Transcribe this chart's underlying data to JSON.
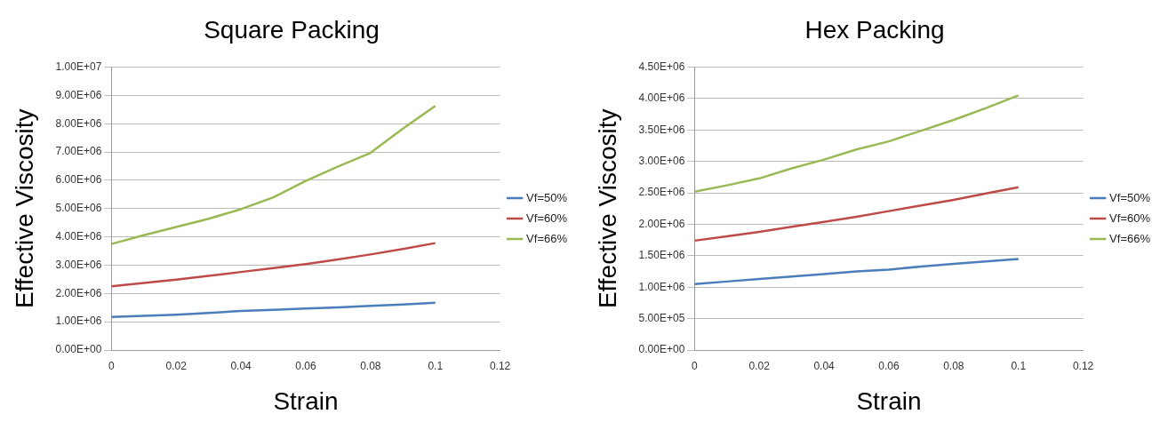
{
  "chart_data": [
    {
      "type": "line",
      "title": "Square Packing",
      "xlabel": "Strain",
      "ylabel": "Effective Viscosity",
      "x": [
        0,
        0.01,
        0.02,
        0.03,
        0.04,
        0.05,
        0.06,
        0.07,
        0.08,
        0.09,
        0.1
      ],
      "series": [
        {
          "name": "Vf=50%",
          "color": "#4a7ebb",
          "values": [
            1170000.0,
            1210000.0,
            1250000.0,
            1310000.0,
            1380000.0,
            1420000.0,
            1470000.0,
            1510000.0,
            1560000.0,
            1610000.0,
            1670000.0
          ]
        },
        {
          "name": "Vf=60%",
          "color": "#be4b48",
          "values": [
            2250000.0,
            2370000.0,
            2490000.0,
            2620000.0,
            2760000.0,
            2900000.0,
            3040000.0,
            3200000.0,
            3380000.0,
            3570000.0,
            3780000.0
          ]
        },
        {
          "name": "Vf=66%",
          "color": "#98b954",
          "values": [
            3750000.0,
            4060000.0,
            4350000.0,
            4640000.0,
            4980000.0,
            5400000.0,
            5980000.0,
            6490000.0,
            6970000.0,
            7830000.0,
            8630000.0
          ]
        }
      ],
      "xlim": [
        0,
        0.12
      ],
      "xticks": [
        0,
        0.02,
        0.04,
        0.06,
        0.08,
        0.1,
        0.12
      ],
      "ylim": [
        0,
        10000000
      ],
      "yticks": [
        {
          "value": 0,
          "label": "0.00E+00"
        },
        {
          "value": 1000000,
          "label": "1.00E+06"
        },
        {
          "value": 2000000,
          "label": "2.00E+06"
        },
        {
          "value": 3000000,
          "label": "3.00E+06"
        },
        {
          "value": 4000000,
          "label": "4.00E+06"
        },
        {
          "value": 5000000,
          "label": "5.00E+06"
        },
        {
          "value": 6000000,
          "label": "6.00E+06"
        },
        {
          "value": 7000000,
          "label": "7.00E+06"
        },
        {
          "value": 8000000,
          "label": "8.00E+06"
        },
        {
          "value": 9000000,
          "label": "9.00E+06"
        },
        {
          "value": 10000000,
          "label": "1.00E+07"
        }
      ],
      "grid": "y",
      "legend": "right",
      "marker": "none",
      "line_style": "solid"
    },
    {
      "type": "line",
      "title": "Hex Packing",
      "xlabel": "Strain",
      "ylabel": "Effective Viscosity",
      "x": [
        0,
        0.01,
        0.02,
        0.03,
        0.04,
        0.05,
        0.06,
        0.07,
        0.08,
        0.09,
        0.1
      ],
      "series": [
        {
          "name": "Vf=50%",
          "color": "#4a7ebb",
          "values": [
            1050000.0,
            1090000.0,
            1130000.0,
            1170000.0,
            1210000.0,
            1250000.0,
            1280000.0,
            1330000.0,
            1370000.0,
            1410000.0,
            1450000.0
          ]
        },
        {
          "name": "Vf=60%",
          "color": "#be4b48",
          "values": [
            1740000.0,
            1810000.0,
            1880000.0,
            1960000.0,
            2040000.0,
            2120000.0,
            2210000.0,
            2300000.0,
            2390000.0,
            2490000.0,
            2590000.0
          ]
        },
        {
          "name": "Vf=66%",
          "color": "#98b954",
          "values": [
            2520000.0,
            2620000.0,
            2730000.0,
            2890000.0,
            3030000.0,
            3190000.0,
            3320000.0,
            3490000.0,
            3660000.0,
            3850000.0,
            4050000.0
          ]
        }
      ],
      "xlim": [
        0,
        0.12
      ],
      "xticks": [
        0,
        0.02,
        0.04,
        0.06,
        0.08,
        0.1,
        0.12
      ],
      "ylim": [
        0,
        4500000
      ],
      "yticks": [
        {
          "value": 0,
          "label": "0.00E+00"
        },
        {
          "value": 500000,
          "label": "5.00E+05"
        },
        {
          "value": 1000000,
          "label": "1.00E+06"
        },
        {
          "value": 1500000,
          "label": "1.50E+06"
        },
        {
          "value": 2000000,
          "label": "2.00E+06"
        },
        {
          "value": 2500000,
          "label": "2.50E+06"
        },
        {
          "value": 3000000,
          "label": "3.00E+06"
        },
        {
          "value": 3500000,
          "label": "3.50E+06"
        },
        {
          "value": 4000000,
          "label": "4.00E+06"
        },
        {
          "value": 4500000,
          "label": "4.50E+06"
        }
      ],
      "grid": "y",
      "legend": "right",
      "marker": "none",
      "line_style": "solid"
    }
  ]
}
